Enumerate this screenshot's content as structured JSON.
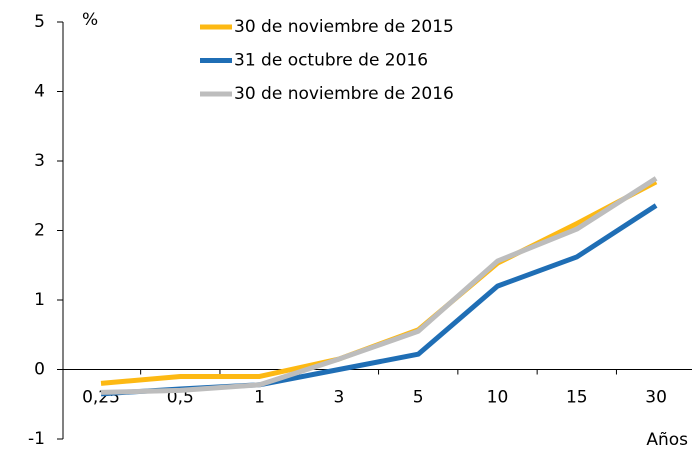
{
  "chart_data": {
    "type": "line",
    "unit_label": "%",
    "x_label": "Años",
    "categories": [
      "0,25",
      "0,5",
      "1",
      "3",
      "5",
      "10",
      "15",
      "30"
    ],
    "series": [
      {
        "name": "30 de noviembre de 2015",
        "color": "#fdb913",
        "values": [
          -0.2,
          -0.1,
          -0.1,
          0.15,
          0.57,
          1.53,
          2.1,
          2.7
        ]
      },
      {
        "name": "31 de octubre de 2016",
        "color": "#1f6eb5",
        "values": [
          -0.35,
          -0.28,
          -0.22,
          0.0,
          0.22,
          1.2,
          1.62,
          2.36
        ]
      },
      {
        "name": "30 de noviembre de 2016",
        "color": "#bdbdbd",
        "values": [
          -0.33,
          -0.3,
          -0.22,
          0.15,
          0.55,
          1.56,
          2.02,
          2.75
        ]
      }
    ],
    "ylim": [
      -1,
      5
    ],
    "yticks": [
      -1,
      0,
      1,
      2,
      3,
      4,
      5
    ]
  }
}
